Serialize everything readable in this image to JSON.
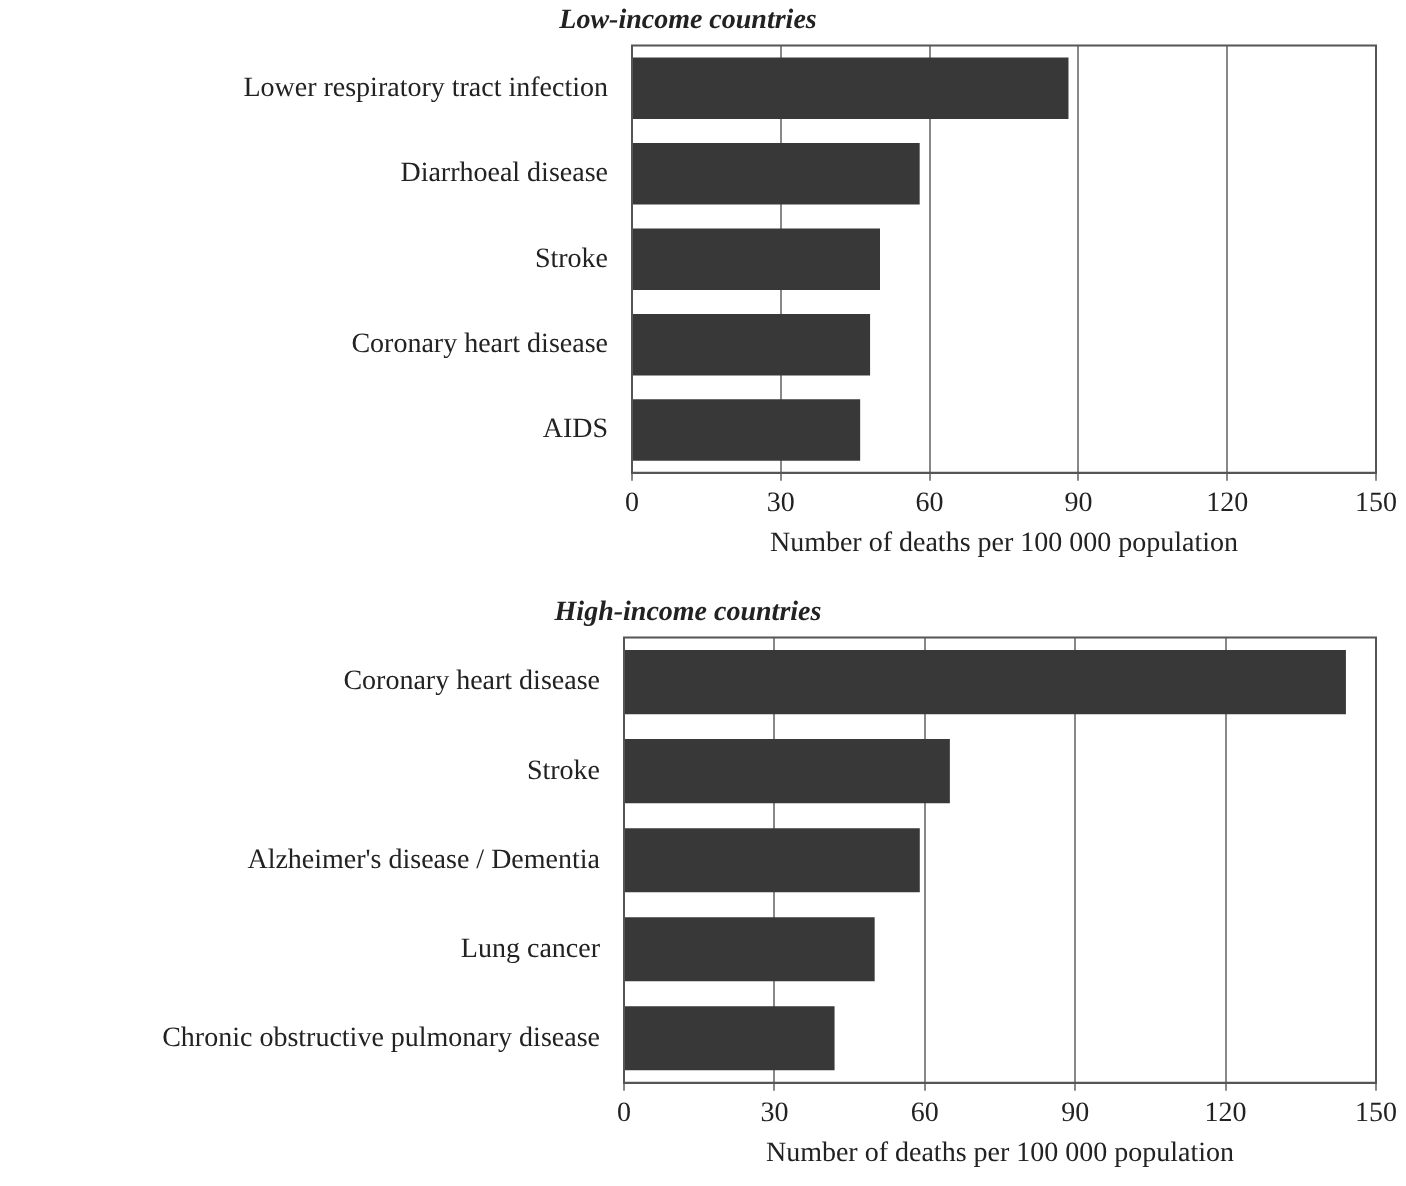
{
  "chart_data": [
    {
      "type": "bar",
      "orientation": "horizontal",
      "title": "Low-income countries",
      "xlabel": "Number of deaths per 100 000 population",
      "categories": [
        "Lower respiratory tract infection",
        "Diarrhoeal disease",
        "Stroke",
        "Coronary heart disease",
        "AIDS"
      ],
      "values": [
        88,
        58,
        50,
        48,
        46
      ],
      "color": "#383838",
      "xlim": [
        0,
        150
      ],
      "xticks": [
        0,
        30,
        60,
        90,
        120,
        150
      ],
      "grid": "x",
      "legend": false
    },
    {
      "type": "bar",
      "orientation": "horizontal",
      "title": "High-income countries",
      "xlabel": "Number of deaths per 100 000 population",
      "categories": [
        "Coronary heart disease",
        "Stroke",
        "Alzheimer's disease / Dementia",
        "Lung cancer",
        "Chronic obstructive pulmonary disease"
      ],
      "values": [
        144,
        65,
        59,
        50,
        42
      ],
      "color": "#383838",
      "xlim": [
        0,
        150
      ],
      "xticks": [
        0,
        30,
        60,
        90,
        120,
        150
      ],
      "grid": "x",
      "legend": false
    }
  ]
}
